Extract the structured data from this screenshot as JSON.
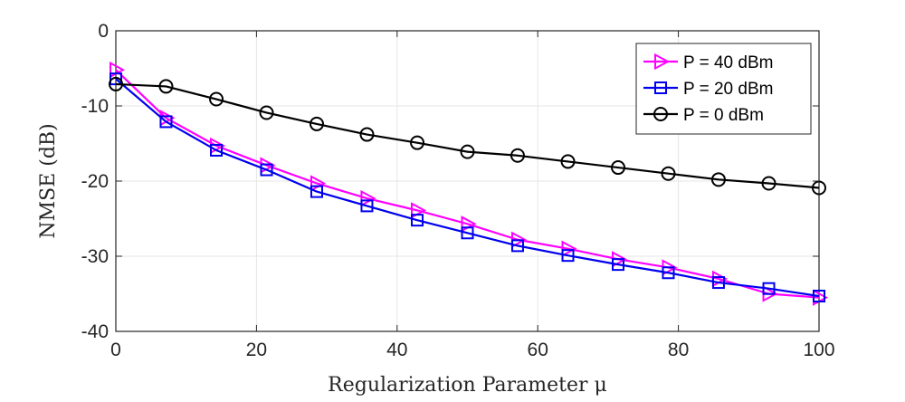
{
  "chart_data": {
    "type": "line",
    "title": "",
    "xlabel": "Regularization Parameter μ",
    "ylabel": "NMSE (dB)",
    "xlim": [
      0,
      100
    ],
    "ylim": [
      -40,
      0
    ],
    "xticks": [
      0,
      20,
      40,
      60,
      80,
      100
    ],
    "yticks": [
      0,
      -10,
      -20,
      -30,
      -40
    ],
    "grid": true,
    "legend_position": "top-right",
    "x": [
      0,
      7.14,
      14.29,
      21.43,
      28.57,
      35.71,
      42.86,
      50,
      57.14,
      64.29,
      71.43,
      78.57,
      85.71,
      92.86,
      100
    ],
    "series": [
      {
        "name": "P = 40 dBm",
        "color": "#ff00ff",
        "marker": "triangle-right",
        "values": [
          -5.2,
          -11.6,
          -15.3,
          -17.9,
          -20.3,
          -22.3,
          -23.9,
          -25.7,
          -27.8,
          -29.0,
          -30.4,
          -31.5,
          -33.0,
          -35.0,
          -35.5
        ]
      },
      {
        "name": "P = 20 dBm",
        "color": "#0000ee",
        "marker": "square",
        "values": [
          -6.4,
          -12.1,
          -15.9,
          -18.5,
          -21.4,
          -23.3,
          -25.2,
          -26.9,
          -28.6,
          -29.9,
          -31.1,
          -32.2,
          -33.5,
          -34.3,
          -35.3
        ]
      },
      {
        "name": "P = 0 dBm",
        "color": "#000000",
        "marker": "circle",
        "values": [
          -7.1,
          -7.4,
          -9.1,
          -10.9,
          -12.4,
          -13.8,
          -14.9,
          -16.1,
          -16.6,
          -17.4,
          -18.2,
          -19.0,
          -19.8,
          -20.3,
          -20.9
        ]
      }
    ]
  }
}
